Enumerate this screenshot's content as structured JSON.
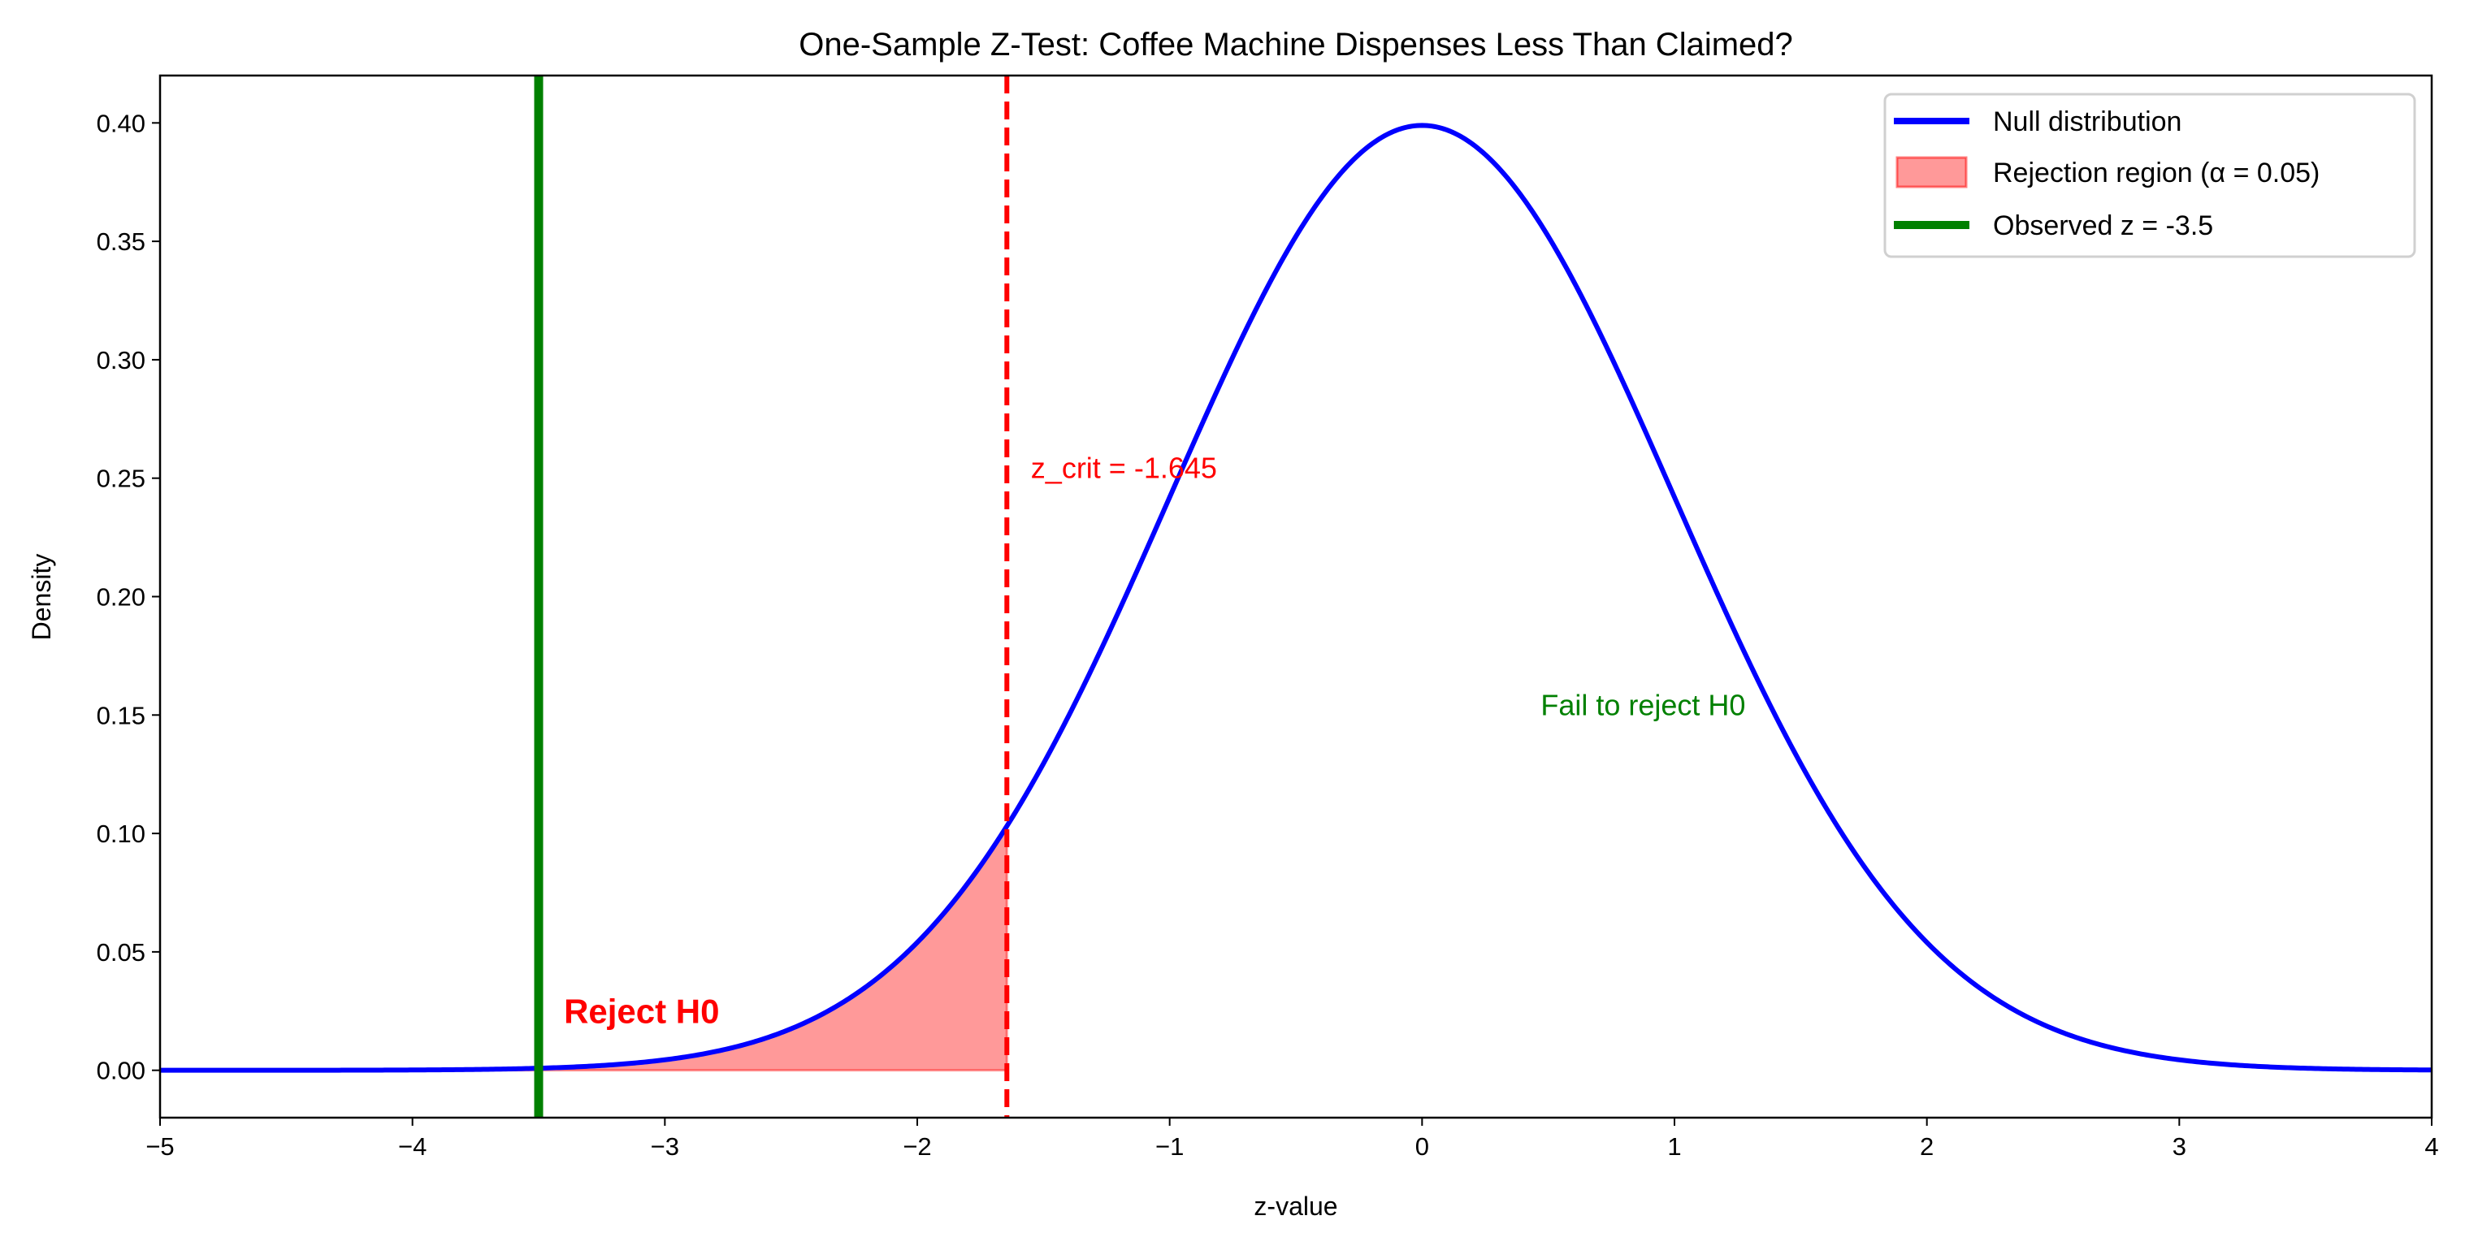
{
  "chart_data": {
    "type": "line",
    "title": "One-Sample Z-Test: Coffee Machine Dispenses Less Than Claimed?",
    "xlabel": "z-value",
    "ylabel": "Density",
    "xlim": [
      -5,
      4
    ],
    "ylim": [
      -0.02,
      0.42
    ],
    "xticks": [
      -5,
      -4,
      -3,
      -2,
      -1,
      0,
      1,
      2,
      3,
      4
    ],
    "xtick_labels": [
      "−5",
      "−4",
      "−3",
      "−2",
      "−1",
      "0",
      "1",
      "2",
      "3",
      "4"
    ],
    "yticks": [
      0.0,
      0.05,
      0.1,
      0.15,
      0.2,
      0.25,
      0.3,
      0.35,
      0.4
    ],
    "ytick_labels": [
      "0.00",
      "0.05",
      "0.10",
      "0.15",
      "0.20",
      "0.25",
      "0.30",
      "0.35",
      "0.40"
    ],
    "grid": false,
    "legend_placement": "upper right",
    "series": [
      {
        "name": "Null distribution",
        "kind": "line",
        "function": "standard normal pdf",
        "mean": 0,
        "sd": 1,
        "x_range": [
          -5,
          4
        ],
        "color": "#0000ff"
      },
      {
        "name": "Rejection region (α = 0.05)",
        "kind": "fill",
        "x_range": [
          -5,
          -1.645
        ],
        "color": "#ff0000",
        "alpha": 0.4
      },
      {
        "name": "Observed z = -3.5",
        "kind": "vline",
        "x": -3.5,
        "color": "#008000"
      }
    ],
    "critical_line": {
      "x": -1.645,
      "color": "#ff0000",
      "style": "dashed"
    },
    "annotations": [
      {
        "text": "z_crit = -1.645",
        "x": -1.55,
        "y": 0.25,
        "color": "#ff0000"
      },
      {
        "text": "Reject H0",
        "x": -3.4,
        "y": 0.02,
        "color": "#ff0000",
        "bold": true
      },
      {
        "text": "Fail to reject H0",
        "x": 0.47,
        "y": 0.15,
        "color": "#008000"
      }
    ]
  }
}
